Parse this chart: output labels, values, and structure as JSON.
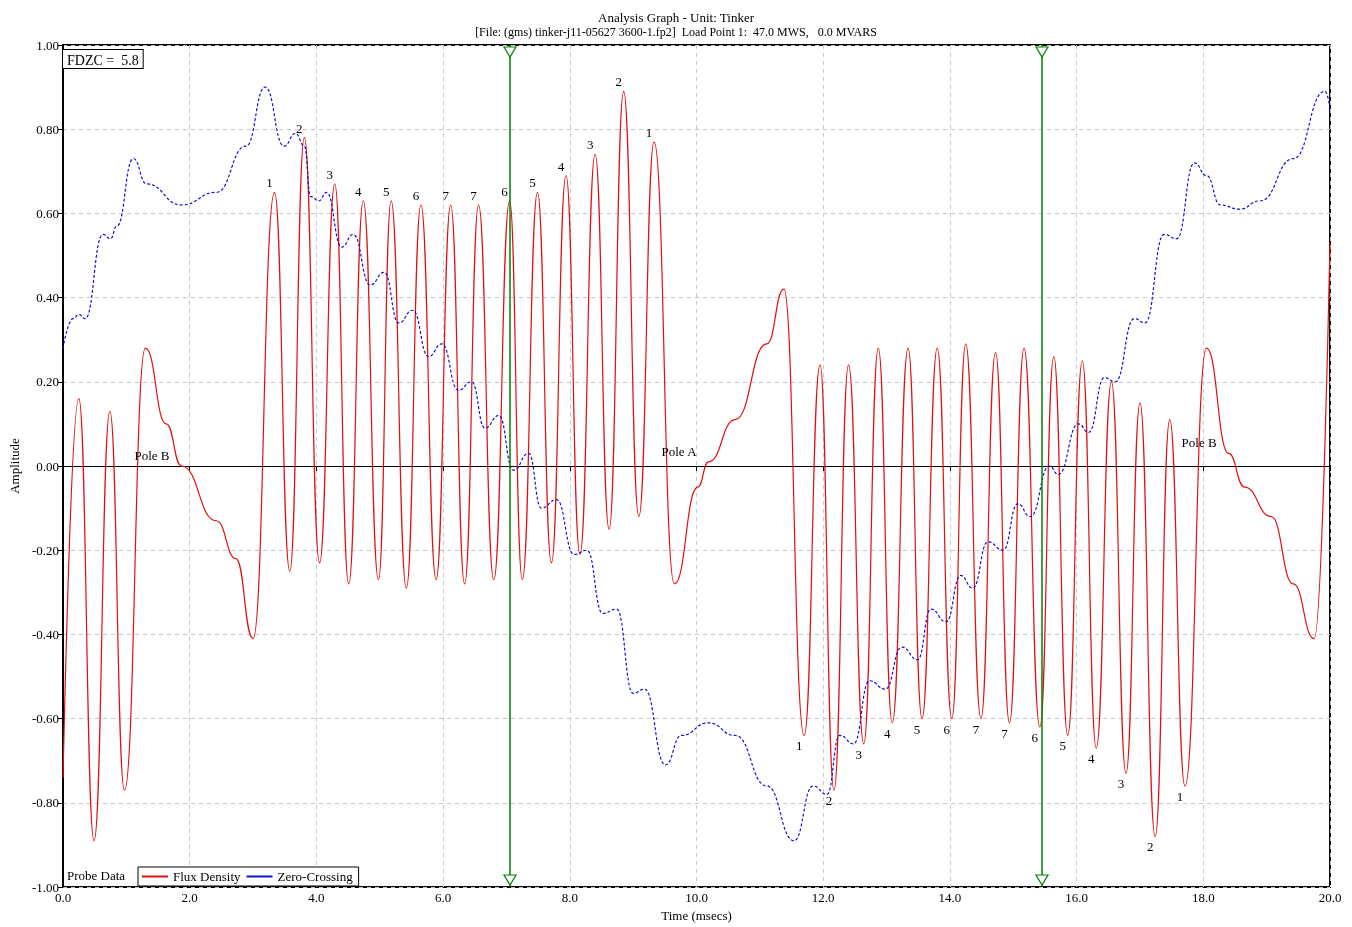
{
  "chart_data": {
    "type": "line",
    "title": "Analysis Graph - Unit: Tinker",
    "subtitle": "[File: (gms) tinker-j11-05627 3600-1.fp2]  Load Point 1:  47.0 MWS,   0.0 MVARS",
    "xlabel": "Time (msecs)",
    "ylabel": "Amplitude",
    "legend_title": "Probe Data",
    "legend": "bottom left",
    "grid": true,
    "marker": "none",
    "xlim": [
      0,
      20
    ],
    "ylim": [
      -1,
      1
    ],
    "xticks": [
      {
        "value": 0,
        "label": "0.0"
      },
      {
        "value": 2,
        "label": "2.0"
      },
      {
        "value": 4,
        "label": "4.0"
      },
      {
        "value": 6,
        "label": "6.0"
      },
      {
        "value": 8,
        "label": "8.0"
      },
      {
        "value": 10,
        "label": "10.0"
      },
      {
        "value": 12,
        "label": "12.0"
      },
      {
        "value": 14,
        "label": "14.0"
      },
      {
        "value": 16,
        "label": "16.0"
      },
      {
        "value": 18,
        "label": "18.0"
      },
      {
        "value": 20,
        "label": "20.0"
      }
    ],
    "yticks": [
      {
        "value": -1,
        "label": "-1.00"
      },
      {
        "value": -0.8,
        "label": "-0.80"
      },
      {
        "value": -0.6,
        "label": "-0.60"
      },
      {
        "value": -0.4,
        "label": "-0.40"
      },
      {
        "value": -0.2,
        "label": "-0.20"
      },
      {
        "value": 0,
        "label": "0.00"
      },
      {
        "value": 0.2,
        "label": "0.20"
      },
      {
        "value": 0.4,
        "label": "0.40"
      },
      {
        "value": 0.6,
        "label": "0.60"
      },
      {
        "value": 0.8,
        "label": "0.80"
      },
      {
        "value": 1,
        "label": "1.00"
      }
    ],
    "series": [
      {
        "name": "Flux Density",
        "color": "#e01010",
        "line_style": "solid",
        "x": [
          0,
          0.25,
          0.49,
          0.74,
          0.97,
          1.3,
          1.63,
          1.87,
          2.42,
          2.73,
          3.0,
          3.34,
          3.58,
          3.81,
          4.05,
          4.29,
          4.51,
          4.74,
          4.98,
          5.18,
          5.42,
          5.65,
          5.89,
          6.12,
          6.34,
          6.56,
          6.8,
          7.05,
          7.25,
          7.49,
          7.71,
          7.94,
          8.16,
          8.4,
          8.62,
          8.85,
          9.09,
          9.33,
          9.65,
          10.02,
          10.19,
          10.61,
          11.11,
          11.38,
          11.7,
          11.95,
          12.17,
          12.4,
          12.64,
          12.87,
          13.09,
          13.34,
          13.56,
          13.8,
          14.03,
          14.25,
          14.49,
          14.72,
          14.94,
          15.17,
          15.42,
          15.64,
          15.86,
          16.09,
          16.31,
          16.55,
          16.78,
          17.0,
          17.24,
          17.47,
          17.71,
          18.05,
          18.4,
          18.65,
          19.07,
          19.42,
          19.75,
          20.0
        ],
        "values": [
          -0.74,
          0.16,
          -0.89,
          0.13,
          -0.77,
          0.28,
          0.1,
          0.0,
          -0.13,
          -0.22,
          -0.41,
          0.65,
          -0.25,
          0.78,
          -0.23,
          0.67,
          -0.28,
          0.63,
          -0.27,
          0.63,
          -0.29,
          0.62,
          -0.27,
          0.62,
          -0.28,
          0.62,
          -0.27,
          0.63,
          -0.27,
          0.65,
          -0.23,
          0.69,
          -0.21,
          0.74,
          -0.15,
          0.89,
          -0.12,
          0.77,
          -0.28,
          -0.05,
          0.01,
          0.11,
          0.29,
          0.42,
          -0.64,
          0.24,
          -0.77,
          0.24,
          -0.66,
          0.28,
          -0.61,
          0.28,
          -0.6,
          0.28,
          -0.6,
          0.29,
          -0.6,
          0.27,
          -0.61,
          0.28,
          -0.62,
          0.26,
          -0.64,
          0.25,
          -0.67,
          0.2,
          -0.73,
          0.15,
          -0.88,
          0.11,
          -0.76,
          0.28,
          0.03,
          -0.05,
          -0.12,
          -0.28,
          -0.41,
          0.53
        ]
      },
      {
        "name": "Zero-Crossing",
        "color": "#1010d0",
        "line_style": "dotted",
        "x": [
          0,
          0.16,
          0.25,
          0.35,
          0.63,
          0.75,
          0.85,
          1.11,
          1.32,
          1.87,
          2.42,
          2.89,
          3.19,
          3.49,
          3.67,
          3.81,
          3.91,
          4.04,
          4.16,
          4.4,
          4.58,
          4.85,
          5.07,
          5.3,
          5.52,
          5.77,
          5.98,
          6.24,
          6.45,
          6.66,
          6.88,
          7.11,
          7.35,
          7.55,
          7.79,
          8.07,
          8.27,
          8.52,
          8.74,
          9.0,
          9.18,
          9.51,
          9.76,
          10.19,
          10.61,
          11.11,
          11.54,
          11.84,
          12.06,
          12.26,
          12.48,
          12.73,
          12.98,
          13.24,
          13.49,
          13.7,
          13.94,
          14.17,
          14.36,
          14.6,
          14.84,
          15.07,
          15.27,
          15.57,
          15.71,
          16.03,
          16.19,
          16.44,
          16.61,
          16.91,
          17.08,
          17.38,
          17.58,
          17.86,
          18.05,
          18.27,
          18.57,
          18.9,
          19.42,
          19.92,
          20.0
        ],
        "values": [
          0.28,
          0.35,
          0.36,
          0.35,
          0.55,
          0.54,
          0.57,
          0.73,
          0.67,
          0.62,
          0.65,
          0.76,
          0.9,
          0.76,
          0.79,
          0.76,
          0.64,
          0.63,
          0.65,
          0.52,
          0.55,
          0.43,
          0.46,
          0.34,
          0.37,
          0.26,
          0.29,
          0.18,
          0.2,
          0.09,
          0.12,
          -0.01,
          0.03,
          -0.1,
          -0.08,
          -0.21,
          -0.2,
          -0.35,
          -0.34,
          -0.54,
          -0.53,
          -0.71,
          -0.64,
          -0.61,
          -0.64,
          -0.76,
          -0.89,
          -0.76,
          -0.78,
          -0.64,
          -0.66,
          -0.51,
          -0.53,
          -0.43,
          -0.46,
          -0.34,
          -0.37,
          -0.26,
          -0.29,
          -0.18,
          -0.2,
          -0.09,
          -0.12,
          0.0,
          -0.02,
          0.1,
          0.08,
          0.21,
          0.2,
          0.35,
          0.34,
          0.55,
          0.54,
          0.72,
          0.69,
          0.62,
          0.61,
          0.63,
          0.73,
          0.89,
          0.85
        ]
      }
    ],
    "ref_lines": [
      {
        "axis": "x",
        "value": 7.05,
        "color": "#008000",
        "line_style": "solid"
      },
      {
        "axis": "x",
        "value": 15.45,
        "color": "#008000",
        "line_style": "solid"
      }
    ],
    "annotations": [
      "FDZC =  5.8",
      {
        "text": "Pole B",
        "x": 1.87,
        "y": 0.0
      },
      {
        "text": "Pole A",
        "x": 10.19,
        "y": 0.01
      },
      {
        "text": "Pole B",
        "x": 18.4,
        "y": 0.03
      },
      {
        "text": "1",
        "x": 3.34,
        "y": 0.65
      },
      {
        "text": "2",
        "x": 3.81,
        "y": 0.78
      },
      {
        "text": "3",
        "x": 4.29,
        "y": 0.67
      },
      {
        "text": "4",
        "x": 4.74,
        "y": 0.63
      },
      {
        "text": "5",
        "x": 5.18,
        "y": 0.63
      },
      {
        "text": "6",
        "x": 5.65,
        "y": 0.62
      },
      {
        "text": "7",
        "x": 6.12,
        "y": 0.62
      },
      {
        "text": "7",
        "x": 6.56,
        "y": 0.62
      },
      {
        "text": "6",
        "x": 7.05,
        "y": 0.63
      },
      {
        "text": "5",
        "x": 7.49,
        "y": 0.65
      },
      {
        "text": "4",
        "x": 7.94,
        "y": 0.69
      },
      {
        "text": "3",
        "x": 8.4,
        "y": 0.74
      },
      {
        "text": "2",
        "x": 8.85,
        "y": 0.89
      },
      {
        "text": "1",
        "x": 9.33,
        "y": 0.77
      },
      {
        "text": "1",
        "x": 11.7,
        "y": -0.64
      },
      {
        "text": "2",
        "x": 12.17,
        "y": -0.77
      },
      {
        "text": "3",
        "x": 12.64,
        "y": -0.66
      },
      {
        "text": "4",
        "x": 13.09,
        "y": -0.61
      },
      {
        "text": "5",
        "x": 13.56,
        "y": -0.6
      },
      {
        "text": "6",
        "x": 14.03,
        "y": -0.6
      },
      {
        "text": "7",
        "x": 14.49,
        "y": -0.6
      },
      {
        "text": "7",
        "x": 14.94,
        "y": -0.61
      },
      {
        "text": "6",
        "x": 15.42,
        "y": -0.62
      },
      {
        "text": "5",
        "x": 15.86,
        "y": -0.64
      },
      {
        "text": "4",
        "x": 16.31,
        "y": -0.67
      },
      {
        "text": "3",
        "x": 16.78,
        "y": -0.73
      },
      {
        "text": "2",
        "x": 17.24,
        "y": -0.88
      },
      {
        "text": "1",
        "x": 17.71,
        "y": -0.76
      }
    ]
  }
}
